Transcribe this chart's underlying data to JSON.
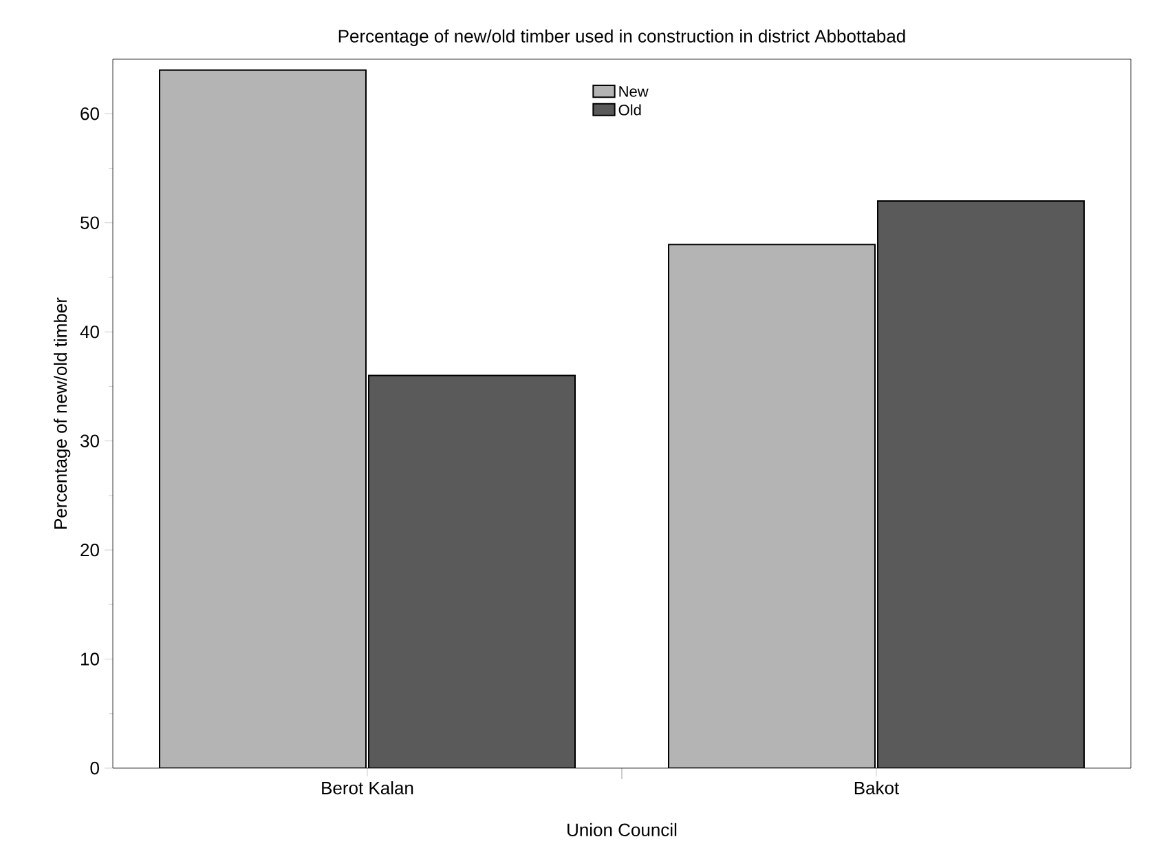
{
  "chart_data": {
    "type": "bar",
    "title": "Percentage of new/old timber used in construction in district Abbottabad",
    "xlabel": "Union Council",
    "ylabel": "Percentage of new/old timber",
    "categories": [
      "Berot Kalan",
      "Bakot"
    ],
    "series": [
      {
        "name": "New",
        "color": "#b4b4b4",
        "values": [
          64,
          48
        ]
      },
      {
        "name": "Old",
        "color": "#5a5a5a",
        "values": [
          36,
          52
        ]
      }
    ],
    "ylim": [
      0,
      65
    ],
    "yticks": [
      0,
      10,
      20,
      30,
      40,
      50,
      60
    ],
    "legend": "top",
    "grid": false
  }
}
